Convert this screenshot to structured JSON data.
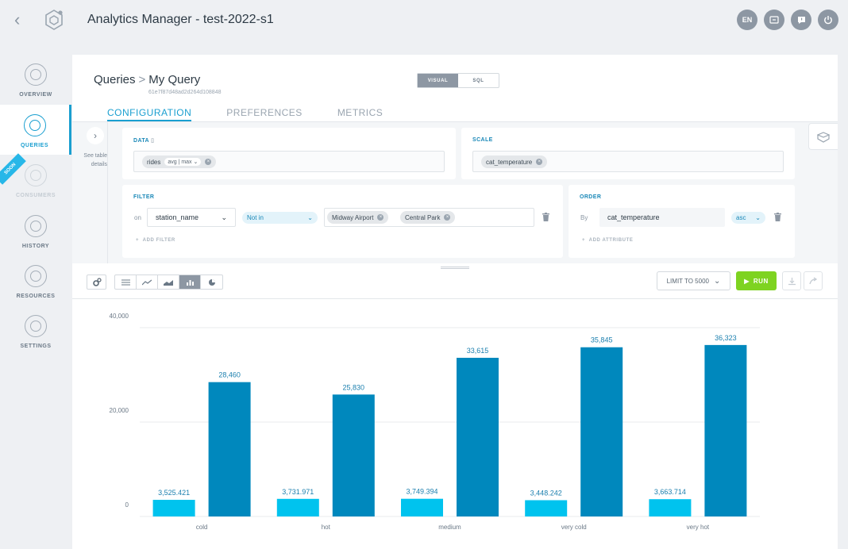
{
  "app": {
    "title": "Analytics Manager - test-2022-s1",
    "lang": "EN"
  },
  "nav": {
    "items": [
      {
        "label": "OVERVIEW",
        "icon": "overview-icon",
        "state": "normal"
      },
      {
        "label": "QUERIES",
        "icon": "queries-icon",
        "state": "active"
      },
      {
        "label": "CONSUMERS",
        "icon": "consumers-icon",
        "state": "disabled"
      },
      {
        "label": "HISTORY",
        "icon": "history-icon",
        "state": "normal"
      },
      {
        "label": "RESOURCES",
        "icon": "resources-icon",
        "state": "normal"
      },
      {
        "label": "SETTINGS",
        "icon": "settings-icon",
        "state": "normal"
      }
    ],
    "soon_badge": "SOON"
  },
  "query": {
    "breadcrumb_root": "Queries",
    "breadcrumb_current": "My Query",
    "id": "61e7f87d48ad2d264d108848",
    "mode_visual": "VISUAL",
    "mode_sql": "SQL",
    "mode_selected": "VISUAL"
  },
  "tabs": {
    "configuration": "CONFIGURATION",
    "preferences": "PREFERENCES",
    "metrics": "METRICS",
    "selected": "CONFIGURATION"
  },
  "side_panel": {
    "see_table_details": "See table details"
  },
  "data_card": {
    "title": "DATA",
    "chip_label": "rides",
    "chip_aggregation": "avg | max"
  },
  "scale_card": {
    "title": "SCALE",
    "chip_label": "cat_temperature"
  },
  "filter_card": {
    "title": "FILTER",
    "on_label": "on",
    "column": "station_name",
    "operator": "Not in",
    "values": [
      "Midway Airport",
      "Central Park"
    ],
    "add_label": "ADD FILTER"
  },
  "order_card": {
    "title": "ORDER",
    "by_label": "By",
    "column": "cat_temperature",
    "direction": "asc",
    "add_label": "ADD ATTRIBUTE"
  },
  "toolbar": {
    "limit_label": "LIMIT TO 5000",
    "run_label": "RUN",
    "selected_viz": "bar"
  },
  "colors": {
    "accent": "#1a9fd0",
    "run": "#7ed321",
    "series_avg": "#00c3ee",
    "series_max": "#0088bd"
  },
  "chart_data": {
    "type": "bar",
    "categories": [
      "cold",
      "hot",
      "medium",
      "very cold",
      "very hot"
    ],
    "series": [
      {
        "values": [
          3525.421,
          3731.971,
          3749.394,
          3448.242,
          3663.714
        ],
        "labels": [
          "3,525.421",
          "3,731.971",
          "3,749.394",
          "3,448.242",
          "3,663.714"
        ]
      },
      {
        "values": [
          28460,
          25830,
          33615,
          35845,
          36323
        ],
        "labels": [
          "28,460",
          "25,830",
          "33,615",
          "35,845",
          "36,323"
        ]
      }
    ],
    "yticks": [
      "0",
      "20,000",
      "40,000"
    ],
    "ytick_values": [
      0,
      20000,
      40000
    ],
    "ylim": [
      0,
      40000
    ],
    "grid": true,
    "legend": "none"
  }
}
